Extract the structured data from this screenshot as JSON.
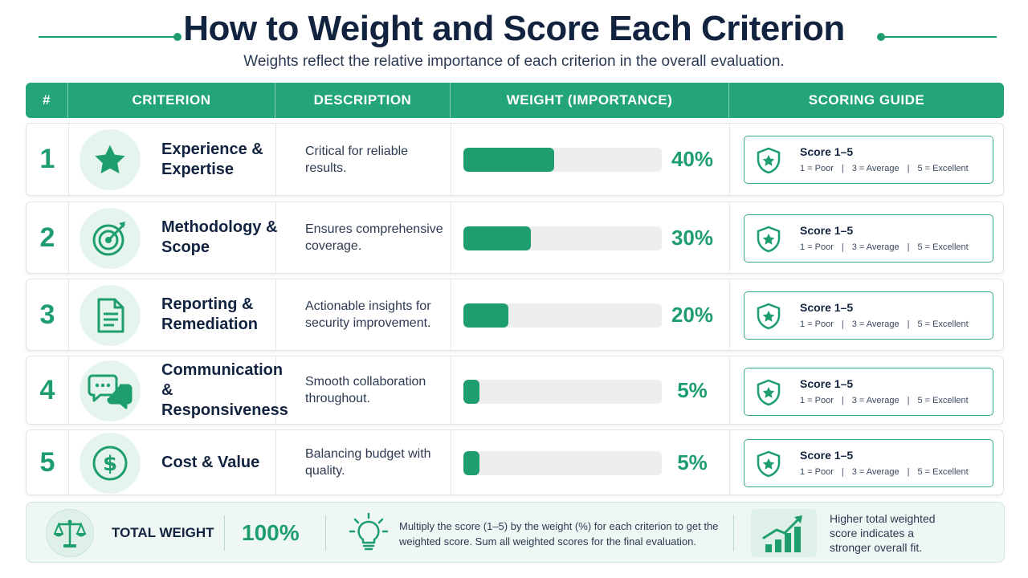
{
  "header": {
    "title": "How to Weight and Score Each Criterion",
    "subtitle": "Weights reflect the relative importance of each criterion in the overall evaluation."
  },
  "columns": [
    "#",
    "CRITERION",
    "DESCRIPTION",
    "WEIGHT (IMPORTANCE)",
    "SCORING GUIDE"
  ],
  "accent_color": "#23a479",
  "rows": [
    {
      "num": "1",
      "icon": "star-icon",
      "criterion": "Experience & Expertise",
      "description": "Critical for reliable results.",
      "weight": 40,
      "weight_label": "40%",
      "guide_title": "Score 1–5",
      "guide_scale": [
        "1 = Poor",
        "3 = Average",
        "5 = Excellent"
      ]
    },
    {
      "num": "2",
      "icon": "target-icon",
      "criterion": "Methodology & Scope",
      "description": "Ensures comprehensive coverage.",
      "weight": 30,
      "weight_label": "30%",
      "guide_title": "Score 1–5",
      "guide_scale": [
        "1 = Poor",
        "3 = Average",
        "5 = Excellent"
      ]
    },
    {
      "num": "3",
      "icon": "document-icon",
      "criterion": "Reporting & Remediation",
      "description": "Actionable insights for security improvement.",
      "weight": 20,
      "weight_label": "20%",
      "guide_title": "Score 1–5",
      "guide_scale": [
        "1 = Poor",
        "3 = Average",
        "5 = Excellent"
      ]
    },
    {
      "num": "4",
      "icon": "chat-bubbles-icon",
      "criterion": "Communication & Responsiveness",
      "description": "Smooth collaboration throughout.",
      "weight": 5,
      "weight_label": "5%",
      "guide_title": "Score 1–5",
      "guide_scale": [
        "1 = Poor",
        "3 = Average",
        "5 = Excellent"
      ]
    },
    {
      "num": "5",
      "icon": "dollar-icon",
      "criterion": "Cost & Value",
      "description": "Balancing budget with quality.",
      "weight": 5,
      "weight_label": "5%",
      "guide_title": "Score 1–5",
      "guide_scale": [
        "1 = Poor",
        "3 = Average",
        "5 = Excellent"
      ]
    }
  ],
  "footer": {
    "total_label": "TOTAL WEIGHT",
    "total_value": "100%",
    "instruction": "Multiply the score (1–5) by the weight (%) for each criterion to get the weighted score. Sum all weighted scores for the final evaluation.",
    "note": "Higher total weighted score indicates a stronger overall fit."
  }
}
